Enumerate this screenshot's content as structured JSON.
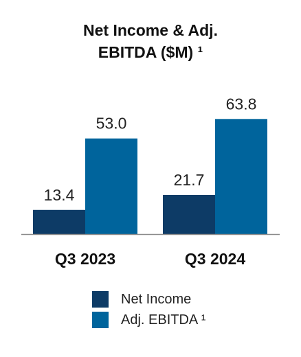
{
  "chart_data": {
    "type": "bar",
    "title_lines": [
      "Net Income & Adj.",
      "EBITDA ($M) ¹"
    ],
    "categories": [
      "Q3 2023",
      "Q3 2024"
    ],
    "series": [
      {
        "name": "Net Income",
        "values": [
          13.4,
          21.7
        ],
        "labels": [
          "13.4",
          "21.7"
        ],
        "color": "#0d3b66"
      },
      {
        "name": "Adj. EBITDA ¹",
        "values": [
          53.0,
          63.8
        ],
        "labels": [
          "53.0",
          "63.8"
        ],
        "color": "#00649c"
      }
    ],
    "ylim": [
      0,
      70
    ],
    "grid": false,
    "legend_position": "bottom"
  }
}
